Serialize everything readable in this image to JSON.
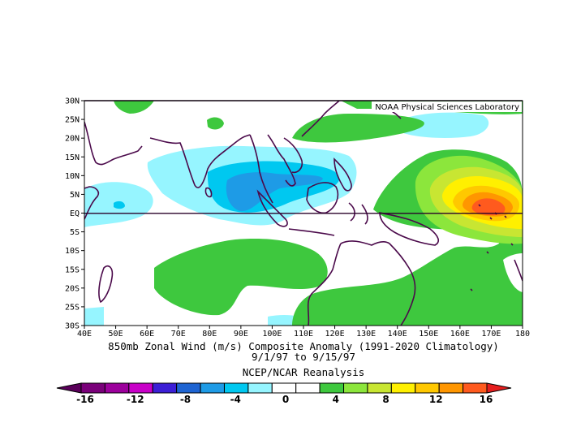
{
  "credit": "NOAA Physical Sciences Laboratory",
  "title_line1": "850mb Zonal Wind (m/s) Composite Anomaly (1991-2020 Climatology)",
  "title_line2": "9/1/97  to 9/15/97",
  "title_line3": "NCEP/NCAR Reanalysis",
  "map": {
    "lon_labels": [
      "40E",
      "50E",
      "60E",
      "70E",
      "80E",
      "90E",
      "100E",
      "110E",
      "120E",
      "130E",
      "140E",
      "150E",
      "160E",
      "170E",
      "180"
    ],
    "lat_labels": [
      "30N",
      "25N",
      "20N",
      "15N",
      "10N",
      "5N",
      "EQ",
      "5S",
      "10S",
      "15S",
      "20S",
      "25S",
      "30S"
    ]
  },
  "colorbar": {
    "labels": [
      "-16",
      "-12",
      "-8",
      "-4",
      "0",
      "4",
      "8",
      "12",
      "16"
    ],
    "colors": [
      "#7a007a",
      "#9c009c",
      "#c800c8",
      "#3c1fd6",
      "#1e64d2",
      "#1e9be6",
      "#00c8f0",
      "#96f5ff",
      "#ffffff",
      "#ffffff",
      "#3ec83e",
      "#8ce63c",
      "#c8e632",
      "#fff000",
      "#ffc800",
      "#ff9600",
      "#ff5a1e"
    ],
    "low_arrow_color": "#5a005a",
    "high_arrow_color": "#e61e1e"
  },
  "palette": {
    "coast": "#4b0a4b",
    "green": "#3ec83e",
    "lightgreen": "#8ce63c",
    "yellowgreen": "#c8e632",
    "yellow": "#fff000",
    "orange": "#ffc800",
    "darkorange": "#ff9600",
    "red": "#ff5a1e",
    "cyan": "#00c8f0",
    "lightblue": "#1e9be6",
    "blue": "#1e64d2"
  }
}
